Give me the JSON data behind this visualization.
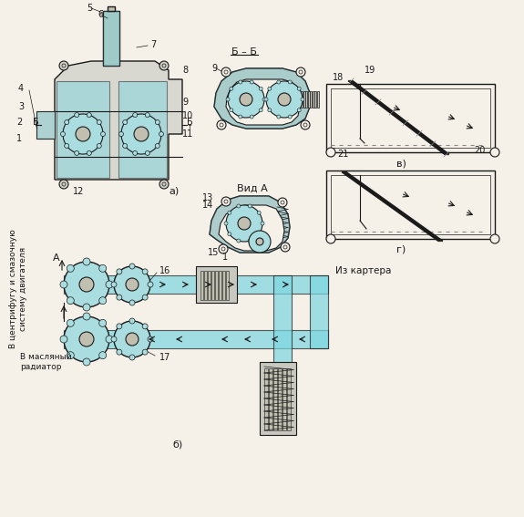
{
  "bg_color": "#f5f0e8",
  "line_color": "#1a1a1a",
  "hatch_color": "#4ab8c8",
  "title": "",
  "labels": {
    "bb": "Б – Б",
    "vid_a": "Вид А",
    "a_label": "а)",
    "b_label": "б)",
    "v_label": "в)",
    "g_label": "г)",
    "iz_kartera": "Из картера",
    "v_tsentrifugu": "В центрифугу и смазочную\nсистему двигателя",
    "v_maslyanyi": "В масляный\nрадиатор",
    "A_arrow": "А"
  },
  "numbers": {
    "pump_side": [
      "1",
      "2",
      "3",
      "4",
      "5",
      "6",
      "7",
      "8",
      "9",
      "10",
      "11",
      "12"
    ],
    "bb_section": [
      "9",
      "13",
      "14",
      "15",
      "1"
    ],
    "filter_section": [
      "16",
      "17"
    ],
    "strainer": [
      "18",
      "19",
      "20",
      "21"
    ]
  }
}
